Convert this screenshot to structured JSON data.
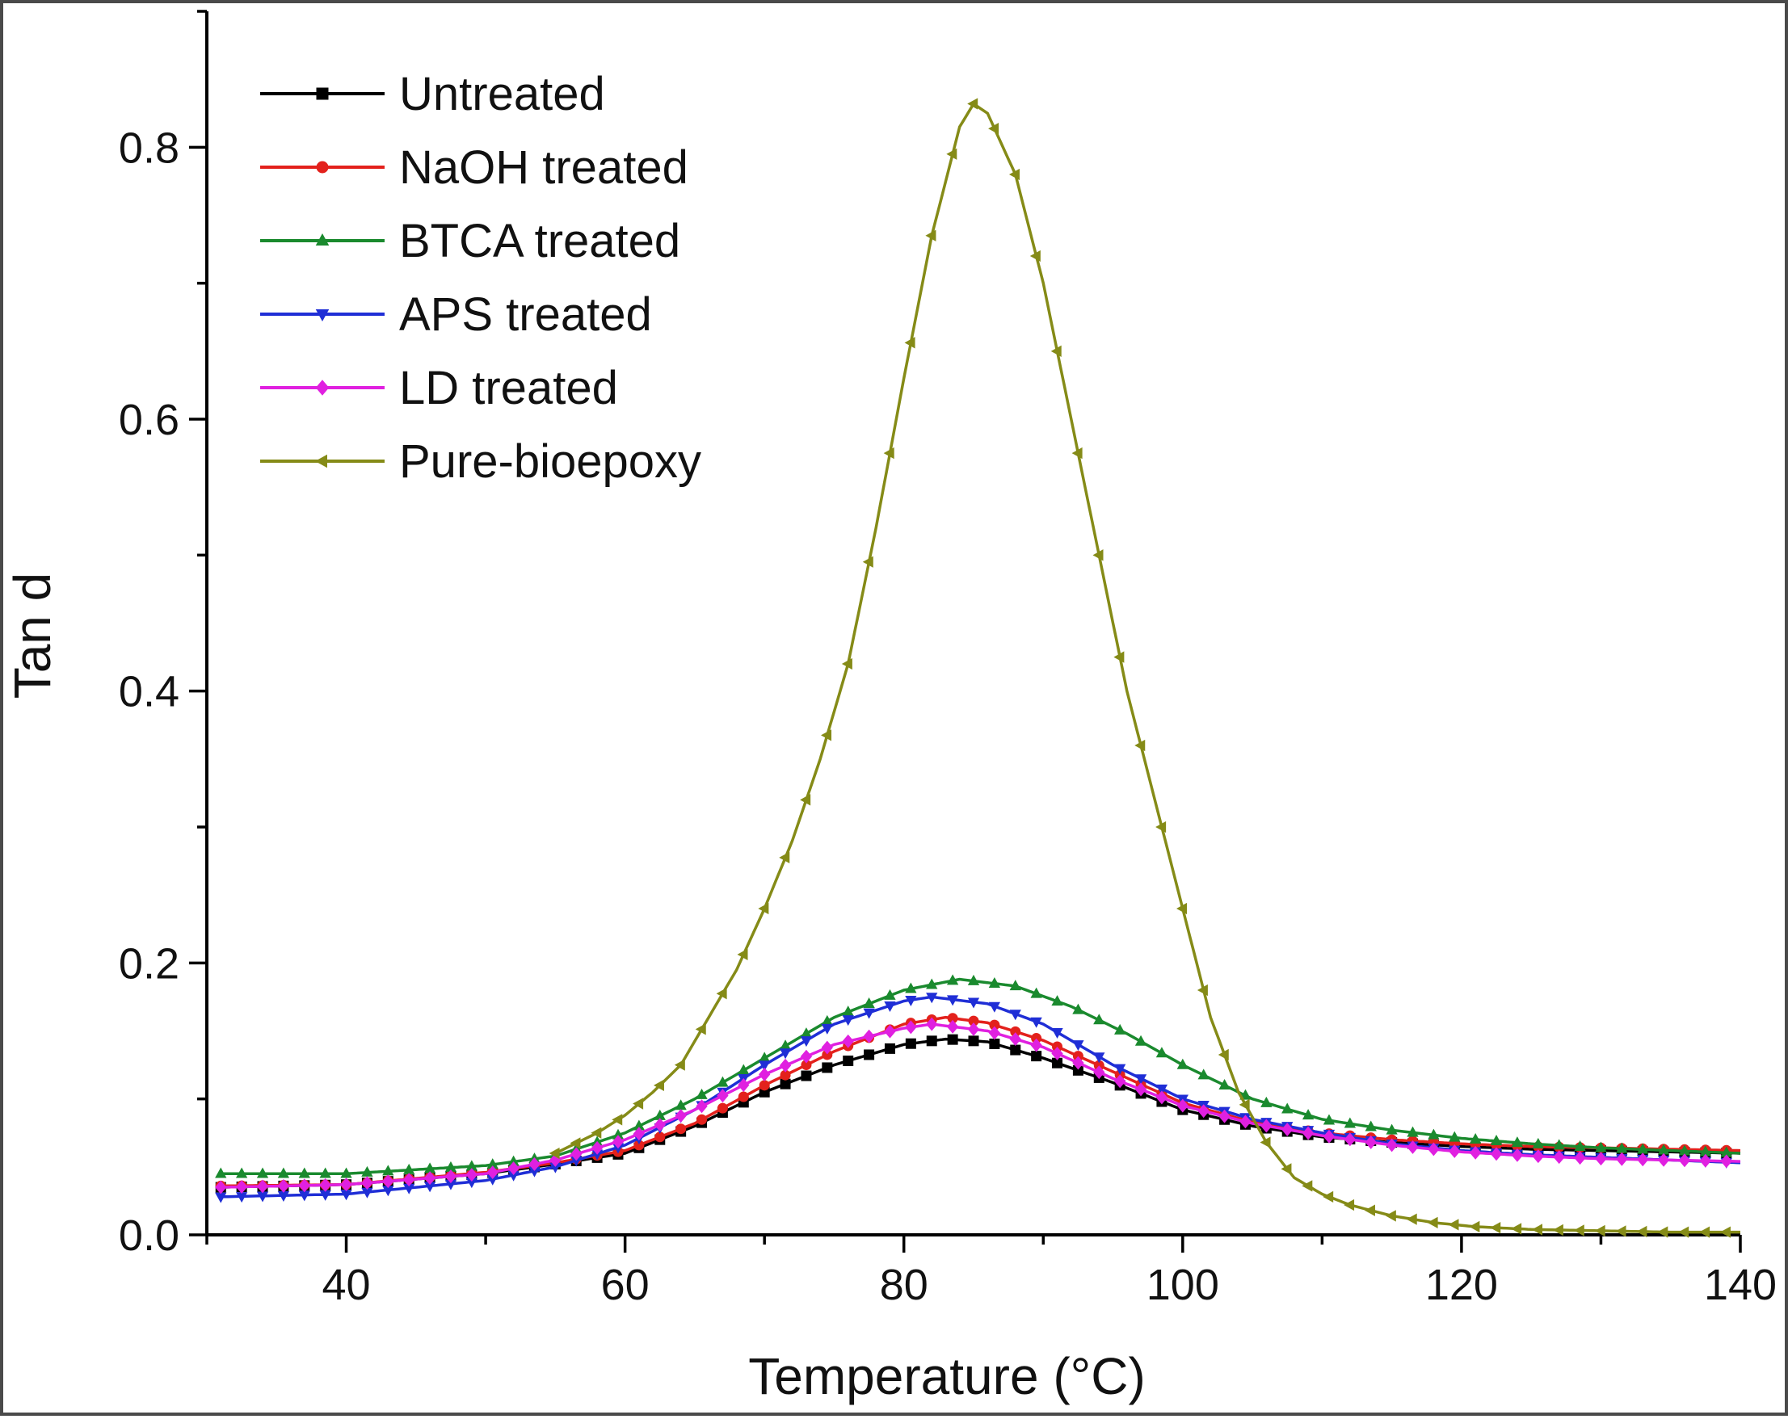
{
  "chart_data": {
    "type": "line",
    "title": "",
    "xlabel": "Temperature (°C)",
    "ylabel": "Tan d",
    "xlim": [
      30,
      140
    ],
    "ylim": [
      0,
      0.9
    ],
    "xticks": [
      40,
      60,
      80,
      100,
      120,
      140
    ],
    "yticks": [
      0.0,
      0.2,
      0.4,
      0.6,
      0.8
    ],
    "xtick_labels": [
      "40",
      "60",
      "80",
      "100",
      "120",
      "140"
    ],
    "ytick_labels": [
      "0.0",
      "0.2",
      "0.4",
      "0.6",
      "0.8"
    ],
    "legend_position": "top-left",
    "grid": false,
    "series": [
      {
        "name": "Untreated",
        "color": "#000000",
        "marker": "square",
        "points": [
          [
            31,
            0.035
          ],
          [
            40,
            0.037
          ],
          [
            50,
            0.045
          ],
          [
            55,
            0.052
          ],
          [
            60,
            0.06
          ],
          [
            65,
            0.08
          ],
          [
            70,
            0.105
          ],
          [
            75,
            0.125
          ],
          [
            80,
            0.14
          ],
          [
            83,
            0.144
          ],
          [
            86,
            0.142
          ],
          [
            90,
            0.13
          ],
          [
            95,
            0.112
          ],
          [
            100,
            0.092
          ],
          [
            105,
            0.08
          ],
          [
            110,
            0.072
          ],
          [
            115,
            0.068
          ],
          [
            120,
            0.065
          ],
          [
            125,
            0.063
          ],
          [
            130,
            0.062
          ],
          [
            135,
            0.061
          ],
          [
            140,
            0.06
          ]
        ]
      },
      {
        "name": "NaOH treated",
        "color": "#e3211c",
        "marker": "circle",
        "points": [
          [
            31,
            0.036
          ],
          [
            40,
            0.037
          ],
          [
            50,
            0.046
          ],
          [
            55,
            0.053
          ],
          [
            60,
            0.062
          ],
          [
            65,
            0.082
          ],
          [
            70,
            0.11
          ],
          [
            75,
            0.135
          ],
          [
            80,
            0.155
          ],
          [
            83,
            0.16
          ],
          [
            86,
            0.156
          ],
          [
            90,
            0.143
          ],
          [
            95,
            0.12
          ],
          [
            100,
            0.097
          ],
          [
            105,
            0.083
          ],
          [
            110,
            0.075
          ],
          [
            115,
            0.07
          ],
          [
            120,
            0.067
          ],
          [
            125,
            0.065
          ],
          [
            130,
            0.064
          ],
          [
            135,
            0.063
          ],
          [
            140,
            0.062
          ]
        ]
      },
      {
        "name": "BTCA treated",
        "color": "#1a8a2e",
        "marker": "triangle-up",
        "points": [
          [
            31,
            0.045
          ],
          [
            40,
            0.045
          ],
          [
            50,
            0.051
          ],
          [
            55,
            0.058
          ],
          [
            60,
            0.075
          ],
          [
            65,
            0.1
          ],
          [
            70,
            0.13
          ],
          [
            75,
            0.16
          ],
          [
            80,
            0.18
          ],
          [
            84,
            0.188
          ],
          [
            88,
            0.183
          ],
          [
            92,
            0.168
          ],
          [
            96,
            0.148
          ],
          [
            100,
            0.125
          ],
          [
            105,
            0.1
          ],
          [
            110,
            0.085
          ],
          [
            115,
            0.077
          ],
          [
            120,
            0.071
          ],
          [
            125,
            0.067
          ],
          [
            130,
            0.064
          ],
          [
            135,
            0.062
          ],
          [
            140,
            0.06
          ]
        ]
      },
      {
        "name": "APS treated",
        "color": "#1f2ed6",
        "marker": "triangle-down",
        "points": [
          [
            31,
            0.028
          ],
          [
            40,
            0.03
          ],
          [
            50,
            0.04
          ],
          [
            55,
            0.05
          ],
          [
            60,
            0.066
          ],
          [
            65,
            0.092
          ],
          [
            70,
            0.125
          ],
          [
            75,
            0.155
          ],
          [
            80,
            0.172
          ],
          [
            82,
            0.175
          ],
          [
            86,
            0.17
          ],
          [
            90,
            0.155
          ],
          [
            95,
            0.125
          ],
          [
            100,
            0.1
          ],
          [
            105,
            0.085
          ],
          [
            110,
            0.075
          ],
          [
            115,
            0.067
          ],
          [
            120,
            0.062
          ],
          [
            125,
            0.059
          ],
          [
            130,
            0.057
          ],
          [
            135,
            0.055
          ],
          [
            140,
            0.053
          ]
        ]
      },
      {
        "name": "LD treated",
        "color": "#e020e0",
        "marker": "diamond",
        "points": [
          [
            31,
            0.035
          ],
          [
            40,
            0.037
          ],
          [
            50,
            0.045
          ],
          [
            55,
            0.055
          ],
          [
            60,
            0.07
          ],
          [
            65,
            0.092
          ],
          [
            70,
            0.118
          ],
          [
            75,
            0.14
          ],
          [
            80,
            0.152
          ],
          [
            82,
            0.155
          ],
          [
            86,
            0.15
          ],
          [
            90,
            0.138
          ],
          [
            95,
            0.115
          ],
          [
            100,
            0.095
          ],
          [
            105,
            0.082
          ],
          [
            110,
            0.073
          ],
          [
            115,
            0.066
          ],
          [
            120,
            0.061
          ],
          [
            125,
            0.058
          ],
          [
            130,
            0.056
          ],
          [
            135,
            0.055
          ],
          [
            140,
            0.054
          ]
        ]
      },
      {
        "name": "Pure-bioepoxy",
        "color": "#858b17",
        "marker": "triangle-left",
        "points": [
          [
            55,
            0.06
          ],
          [
            58,
            0.075
          ],
          [
            60,
            0.088
          ],
          [
            62,
            0.105
          ],
          [
            64,
            0.125
          ],
          [
            66,
            0.16
          ],
          [
            68,
            0.195
          ],
          [
            70,
            0.24
          ],
          [
            72,
            0.29
          ],
          [
            74,
            0.35
          ],
          [
            76,
            0.42
          ],
          [
            78,
            0.52
          ],
          [
            80,
            0.63
          ],
          [
            82,
            0.735
          ],
          [
            84,
            0.815
          ],
          [
            85,
            0.832
          ],
          [
            86,
            0.825
          ],
          [
            88,
            0.78
          ],
          [
            90,
            0.7
          ],
          [
            92,
            0.6
          ],
          [
            94,
            0.5
          ],
          [
            96,
            0.4
          ],
          [
            98,
            0.32
          ],
          [
            100,
            0.24
          ],
          [
            102,
            0.16
          ],
          [
            104,
            0.105
          ],
          [
            106,
            0.068
          ],
          [
            107,
            0.055
          ],
          [
            108,
            0.042
          ],
          [
            110,
            0.03
          ],
          [
            112,
            0.022
          ],
          [
            115,
            0.014
          ],
          [
            118,
            0.009
          ],
          [
            121,
            0.006
          ],
          [
            125,
            0.004
          ],
          [
            130,
            0.003
          ],
          [
            135,
            0.002
          ],
          [
            140,
            0.002
          ]
        ]
      }
    ]
  }
}
